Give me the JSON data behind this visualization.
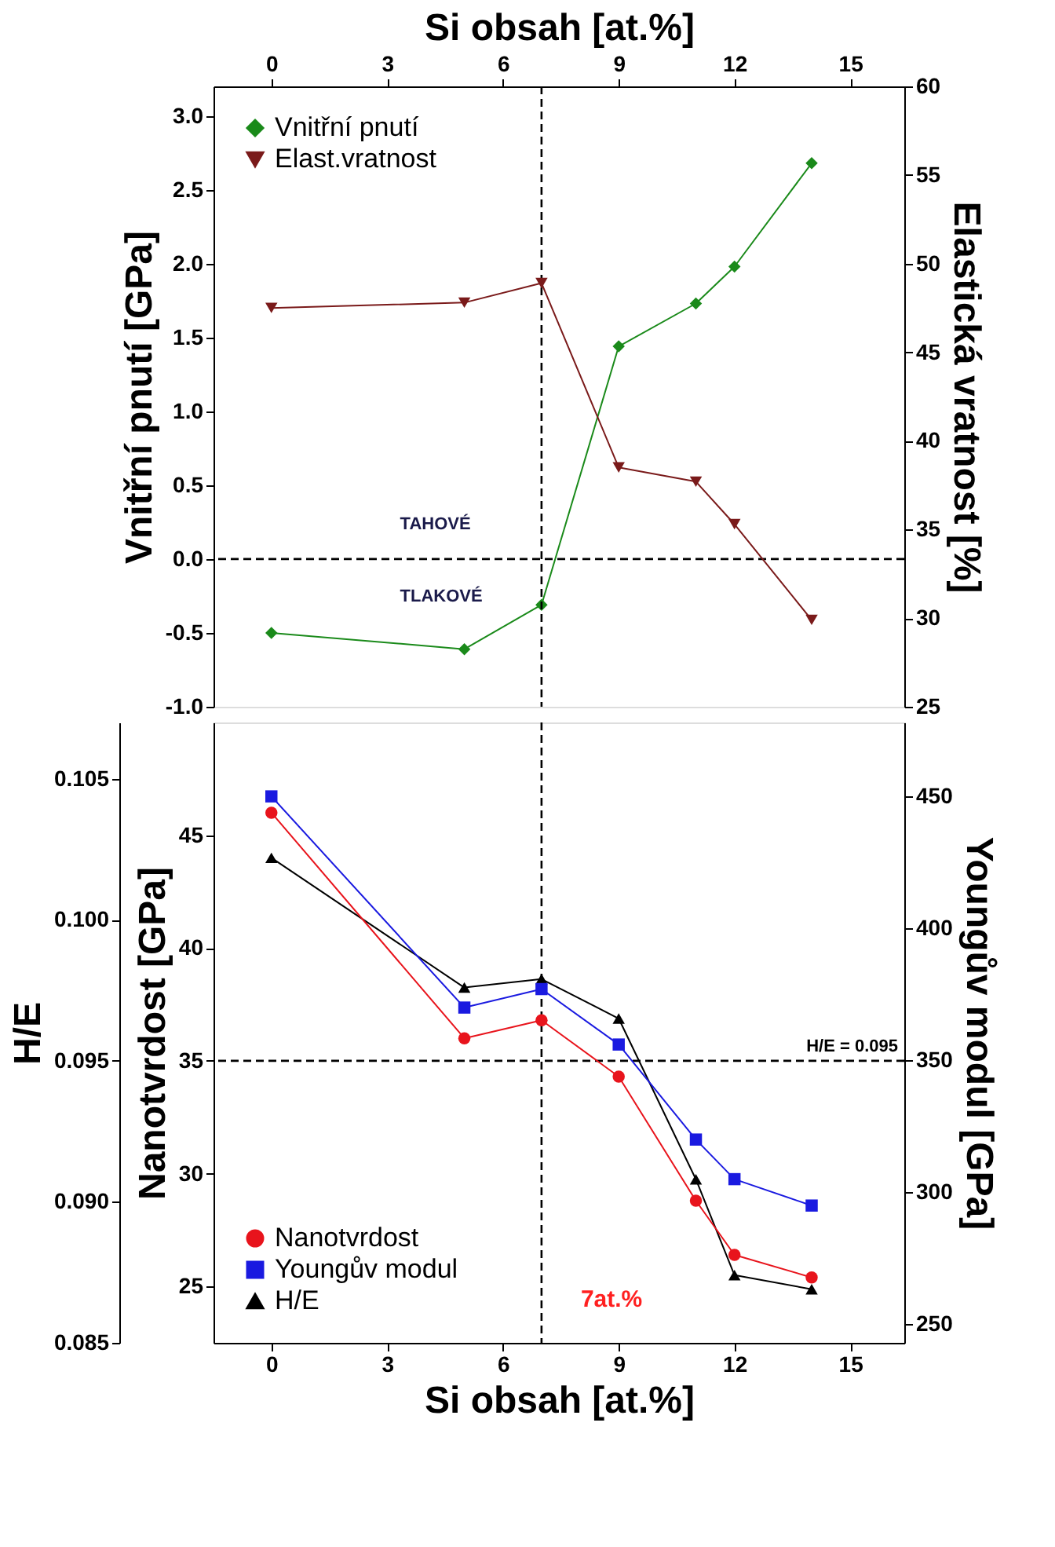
{
  "chart_data": [
    {
      "type": "line",
      "xlabel": "Si obsah [at.%]",
      "ylabel": "Vnitřní pnutí [GPa]",
      "y2label": "Elastická vratnost [%]",
      "xlim": [
        -1.5,
        16.4
      ],
      "xticks": [
        0,
        3,
        6,
        9,
        12,
        15
      ],
      "ylim": [
        -1,
        3.2
      ],
      "yticks": [
        {
          "value": -1,
          "label": "-1.0"
        },
        -0.5,
        {
          "value": 0,
          "label": "0.0"
        },
        0.5,
        {
          "value": 1,
          "label": "1.0"
        },
        1.5,
        {
          "value": 2,
          "label": "2.0"
        },
        2.5,
        {
          "value": 3,
          "label": "3.0"
        }
      ],
      "y2lim": [
        25,
        60
      ],
      "y2ticks": [
        25,
        30,
        35,
        40,
        45,
        50,
        55,
        60
      ],
      "series": [
        {
          "name": "Vnitřní pnutí",
          "color": "#1a8a1a",
          "marker": "diamond",
          "x": [
            0,
            5,
            7,
            9,
            11,
            12,
            14
          ],
          "values": [
            -0.5,
            -0.61,
            -0.31,
            1.44,
            1.73,
            1.98,
            2.68
          ]
        },
        {
          "name": "Elast.vratnost",
          "color": "#7a1a1a",
          "marker": "triangle-down",
          "axis": "y2",
          "x": [
            0,
            5,
            7,
            9,
            11,
            12,
            14
          ],
          "values": [
            47.5,
            47.8,
            48.9,
            38.5,
            37.7,
            35.3,
            29.9
          ]
        }
      ],
      "ref_lines": [
        {
          "axis": "y",
          "value": 0,
          "line_style": "dashed"
        },
        {
          "axis": "x",
          "value": 7,
          "line_style": "dashed"
        }
      ],
      "annotations": [
        "TAHOVÉ",
        "TLAKOVÉ"
      ],
      "legend": "top left",
      "grid": false
    },
    {
      "type": "line",
      "xlabel": "Si obsah [at.%]",
      "ylabel": "H/E",
      "y2label": "Youngův modul [GPa]",
      "y3label": "Nanotvrdost [GPa]",
      "xlim": [
        -1.5,
        16.4
      ],
      "xticks": [
        0,
        3,
        6,
        9,
        12,
        15
      ],
      "ylim": [
        0.085,
        0.107
      ],
      "yticks": [
        0.085,
        {
          "value": 0.09,
          "label": "0.090"
        },
        0.095,
        {
          "value": 0.1,
          "label": "0.100"
        },
        0.105
      ],
      "y2lim": [
        243,
        478
      ],
      "y2ticks": [
        250,
        300,
        350,
        400,
        450
      ],
      "y3lim": [
        22.5,
        50
      ],
      "y3ticks": [
        25,
        30,
        35,
        40,
        45
      ],
      "series": [
        {
          "name": "Nanotvrdost",
          "color": "#e8141c",
          "marker": "circle",
          "axis": "y3",
          "x": [
            0,
            5,
            7,
            9,
            11,
            12,
            14
          ],
          "values": [
            46.0,
            36.0,
            36.8,
            34.3,
            28.8,
            26.4,
            25.4
          ]
        },
        {
          "name": "Youngův modul",
          "color": "#1a1ae0",
          "marker": "square",
          "axis": "y2",
          "x": [
            0,
            5,
            7,
            9,
            11,
            12,
            14
          ],
          "values": [
            450,
            370,
            377,
            356,
            320,
            305,
            295
          ]
        },
        {
          "name": "H/E",
          "color": "#000000",
          "marker": "triangle",
          "x": [
            0,
            5,
            7,
            9,
            11,
            12,
            14
          ],
          "values": [
            0.1022,
            0.0976,
            0.0979,
            0.0965,
            0.0908,
            0.0874,
            0.0869
          ]
        }
      ],
      "ref_lines": [
        {
          "axis": "x",
          "value": 7,
          "line_style": "dashed"
        },
        {
          "axis": "y",
          "value": 0.095,
          "label": "H/E = 0.095",
          "line_style": "dashed"
        }
      ],
      "annotations": [
        "7at.%"
      ],
      "legend": "bottom left",
      "grid": false
    }
  ]
}
